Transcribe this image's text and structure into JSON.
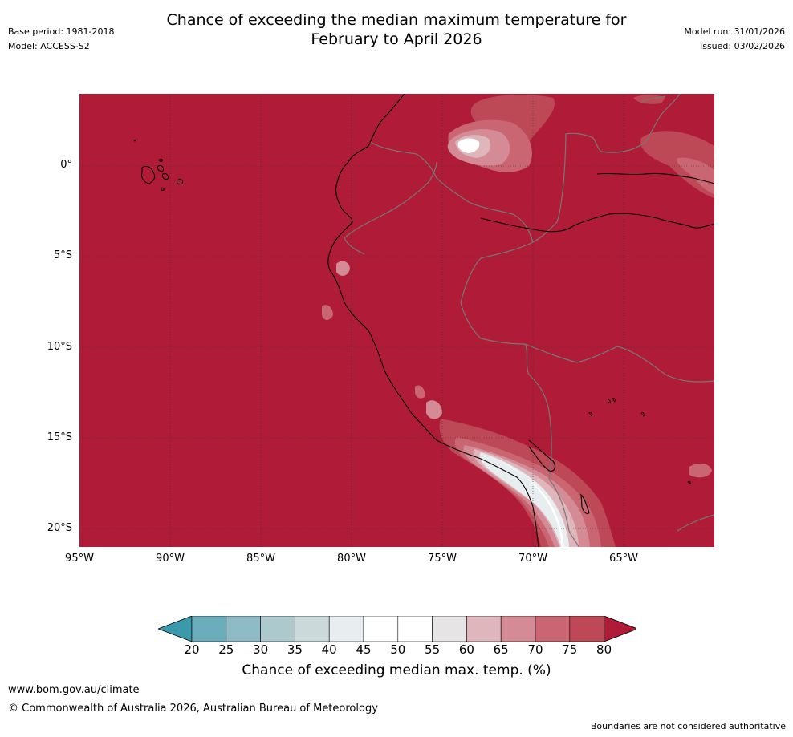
{
  "header": {
    "title_line1": "Chance of exceeding the median maximum temperature for",
    "title_line2": "February to April 2026",
    "base_period": "Base period: 1981-2018",
    "model": "Model: ACCESS-S2",
    "model_run": "Model run: 31/01/2026",
    "issued": "Issued: 03/02/2026"
  },
  "map": {
    "lat_labels": [
      "0°",
      "5°S",
      "10°S",
      "15°S",
      "20°S"
    ],
    "lon_labels": [
      "95°W",
      "90°W",
      "85°W",
      "80°W",
      "75°W",
      "70°W",
      "65°W"
    ],
    "ocean_fill": "#b01c38",
    "land_border_color": "#777777",
    "coastline_color": "#000000"
  },
  "colorbar": {
    "ticks": [
      "20",
      "25",
      "30",
      "35",
      "40",
      "45",
      "50",
      "55",
      "60",
      "65",
      "70",
      "75",
      "80"
    ],
    "colors": [
      "#3a9aab",
      "#6aaebb",
      "#8ebbc6",
      "#aec9ce",
      "#ccd9da",
      "#e8eeef",
      "#ffffff",
      "#ffffff",
      "#e6e4e4",
      "#dfb6bc",
      "#d48b96",
      "#c96672",
      "#bd4856",
      "#b01c38"
    ],
    "label": "Chance of exceeding median max. temp. (%)"
  },
  "footer": {
    "website": "www.bom.gov.au/climate",
    "copyright": "© Commonwealth of Australia 2026, Australian Bureau of Meteorology",
    "disclaimer": "Boundaries are not considered authoritative"
  }
}
